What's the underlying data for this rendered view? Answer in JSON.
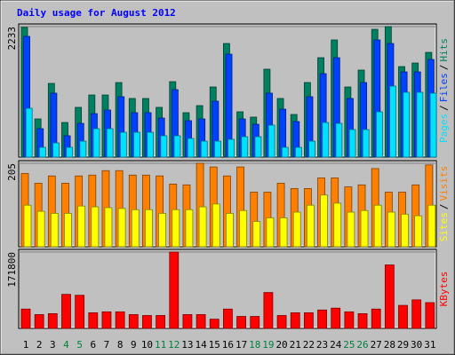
{
  "chart_data": [
    {
      "type": "bar",
      "title": "Daily usage for August 2012",
      "ylim": [
        0,
        2233
      ],
      "yticks": [
        2233
      ],
      "legend_separator": "/",
      "series": [
        {
          "name": "Hits",
          "color": "#008060",
          "values": [
            2220,
            653,
            1261,
            592,
            851,
            1063,
            1063,
            1276,
            1003,
            1003,
            851,
            1291,
            760,
            881,
            1200,
            1944,
            775,
            684,
            1504,
            1003,
            729,
            1276,
            1701,
            2005,
            1200,
            1489,
            2187,
            2233,
            1549,
            1610,
            1792
          ]
        },
        {
          "name": "Files",
          "color": "#0040FF",
          "values": [
            2066,
            486,
            1094,
            365,
            577,
            744,
            805,
            1033,
            760,
            760,
            668,
            1154,
            623,
            653,
            957,
            1762,
            653,
            562,
            1094,
            820,
            608,
            1033,
            1428,
            1701,
            1003,
            1276,
            2005,
            1944,
            1458,
            1458,
            1671
          ]
        },
        {
          "name": "Pages",
          "color": "#00E0FF",
          "values": [
            835,
            167,
            243,
            167,
            273,
            486,
            486,
            425,
            425,
            425,
            365,
            365,
            319,
            273,
            273,
            304,
            349,
            349,
            547,
            167,
            167,
            273,
            592,
            577,
            471,
            471,
            775,
            1215,
            1109,
            1109,
            1094
          ]
        }
      ]
    },
    {
      "type": "bar",
      "ylim": [
        0,
        205
      ],
      "yticks": [
        205
      ],
      "legend_separator": "/",
      "series": [
        {
          "name": "Visits",
          "color": "#FF8000",
          "values": [
            180,
            156,
            174,
            156,
            174,
            176,
            187,
            187,
            176,
            176,
            174,
            154,
            152,
            205,
            196,
            174,
            196,
            134,
            134,
            156,
            143,
            143,
            169,
            169,
            147,
            152,
            192,
            134,
            134,
            152,
            201
          ]
        },
        {
          "name": "Sites",
          "color": "#FFFF00",
          "values": [
            102,
            87,
            82,
            82,
            100,
            98,
            96,
            94,
            91,
            91,
            82,
            91,
            91,
            98,
            105,
            82,
            89,
            62,
            71,
            71,
            85,
            102,
            127,
            107,
            85,
            89,
            102,
            85,
            80,
            76,
            102
          ]
        }
      ]
    },
    {
      "type": "bar",
      "ylim": [
        0,
        171800
      ],
      "yticks": [
        171800
      ],
      "categories": [
        "1",
        "2",
        "3",
        "4",
        "5",
        "6",
        "7",
        "8",
        "9",
        "10",
        "11",
        "12",
        "13",
        "14",
        "15",
        "16",
        "17",
        "18",
        "19",
        "20",
        "21",
        "22",
        "23",
        "24",
        "25",
        "26",
        "27",
        "28",
        "29",
        "30",
        "31"
      ],
      "category_colors": [
        "#000000",
        "#000000",
        "#000000",
        "#008040",
        "#008040",
        "#000000",
        "#000000",
        "#000000",
        "#000000",
        "#000000",
        "#008040",
        "#008040",
        "#000000",
        "#000000",
        "#000000",
        "#000000",
        "#000000",
        "#008040",
        "#008040",
        "#000000",
        "#000000",
        "#000000",
        "#000000",
        "#000000",
        "#008040",
        "#008040",
        "#000000",
        "#000000",
        "#000000",
        "#000000",
        "#000000"
      ],
      "series": [
        {
          "name": "KBytes",
          "color": "#FF0000",
          "values": [
            43470,
            31050,
            33120,
            76590,
            74520,
            35190,
            37260,
            37260,
            31050,
            28980,
            28980,
            171800,
            31050,
            31050,
            20700,
            43470,
            26910,
            26910,
            80730,
            28980,
            35190,
            35190,
            41400,
            45540,
            37260,
            33120,
            43470,
            142830,
            51750,
            64170,
            57960
          ]
        }
      ]
    }
  ]
}
